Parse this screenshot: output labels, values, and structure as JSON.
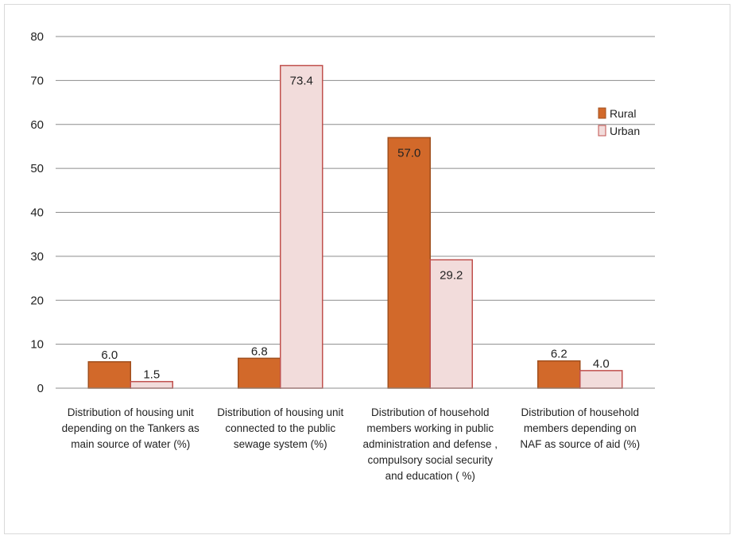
{
  "chart_data": {
    "type": "bar",
    "categories": [
      [
        "Distribution of housing unit",
        "depending on the Tankers as",
        "main source of water  (%)"
      ],
      [
        "Distribution of housing unit",
        "connected to the  public",
        "sewage system  (%)"
      ],
      [
        "Distribution  of household",
        "members  working in public",
        "administration and defense ,",
        "compulsory social security",
        "and education ( %)"
      ],
      [
        "Distribution of household",
        "members  depending on",
        "NAF as source of aid (%)"
      ]
    ],
    "series": [
      {
        "name": "Rural",
        "values": [
          6.0,
          6.8,
          57.0,
          6.2
        ],
        "labels": [
          "6.0",
          "6.8",
          "57.0",
          "6.2"
        ],
        "color": "#d2692a",
        "stroke": "#a04f1e"
      },
      {
        "name": "Urban",
        "values": [
          1.5,
          73.4,
          29.2,
          4.0
        ],
        "labels": [
          "1.5",
          "73.4",
          "29.2",
          "4.0"
        ],
        "color": "#f2dcdb",
        "stroke": "#c0504d"
      }
    ],
    "ylim": [
      0,
      80
    ],
    "yticks": [
      0,
      10,
      20,
      30,
      40,
      50,
      60,
      70,
      80
    ],
    "grid": true,
    "legend": "right"
  }
}
